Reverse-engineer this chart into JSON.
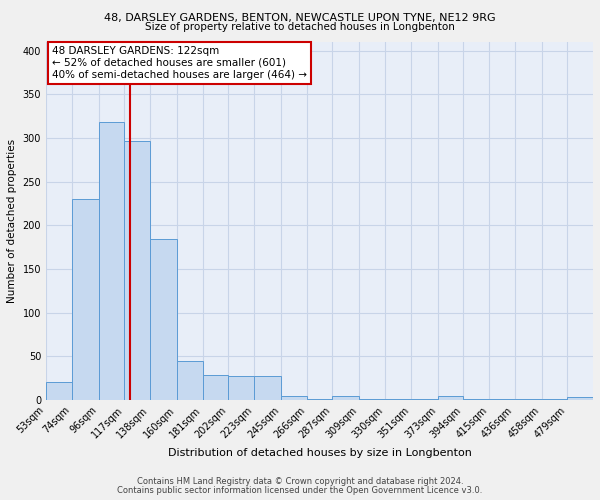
{
  "title1": "48, DARSLEY GARDENS, BENTON, NEWCASTLE UPON TYNE, NE12 9RG",
  "title2": "Size of property relative to detached houses in Longbenton",
  "xlabel": "Distribution of detached houses by size in Longbenton",
  "ylabel": "Number of detached properties",
  "bins": [
    53,
    74,
    96,
    117,
    138,
    160,
    181,
    202,
    223,
    245,
    266,
    287,
    309,
    330,
    351,
    373,
    394,
    415,
    436,
    458,
    479,
    500
  ],
  "bin_labels": [
    "53sqm",
    "74sqm",
    "96sqm",
    "117sqm",
    "138sqm",
    "160sqm",
    "181sqm",
    "202sqm",
    "223sqm",
    "245sqm",
    "266sqm",
    "287sqm",
    "309sqm",
    "330sqm",
    "351sqm",
    "373sqm",
    "394sqm",
    "415sqm",
    "436sqm",
    "458sqm",
    "479sqm"
  ],
  "values": [
    20,
    230,
    318,
    297,
    184,
    45,
    28,
    27,
    27,
    5,
    1,
    5,
    1,
    1,
    1,
    5,
    1,
    1,
    1,
    1,
    3
  ],
  "bar_color": "#c6d9f0",
  "bar_edge_color": "#5b9bd5",
  "property_size": 122,
  "vline_color": "#cc0000",
  "annotation_text": "48 DARSLEY GARDENS: 122sqm\n← 52% of detached houses are smaller (601)\n40% of semi-detached houses are larger (464) →",
  "annotation_box_color": "#ffffff",
  "annotation_box_edge": "#cc0000",
  "ylim": [
    0,
    410
  ],
  "yticks": [
    0,
    50,
    100,
    150,
    200,
    250,
    300,
    350,
    400
  ],
  "grid_color": "#c8d4e8",
  "bg_color": "#e8eef8",
  "fig_bg_color": "#f0f0f0",
  "footnote1": "Contains HM Land Registry data © Crown copyright and database right 2024.",
  "footnote2": "Contains public sector information licensed under the Open Government Licence v3.0."
}
